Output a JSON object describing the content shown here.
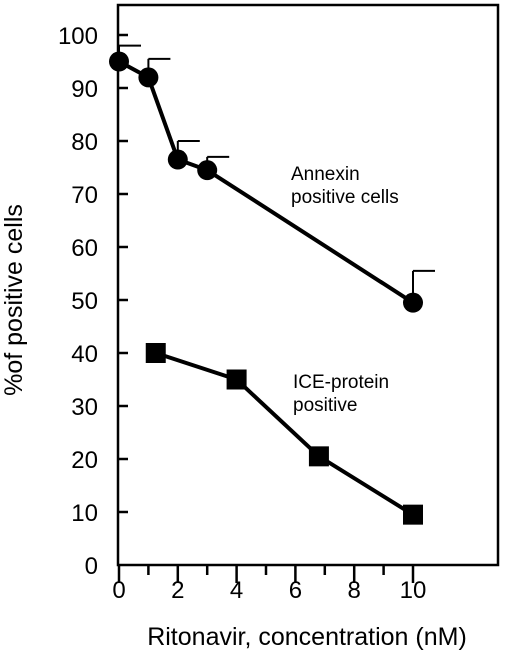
{
  "chart_data": {
    "type": "line",
    "xlabel": "Ritonavir, concentration (nM)",
    "ylabel": "%of positive cells",
    "xlim": [
      0,
      12.8
    ],
    "ylim": [
      0,
      100
    ],
    "x_ticks_major": [
      0,
      2,
      4,
      6,
      8,
      10
    ],
    "x_ticks_minor": [
      1,
      3,
      5,
      7,
      9
    ],
    "x_tick_labels": [
      "0",
      "2",
      "4",
      "6",
      "8",
      "10"
    ],
    "y_ticks": [
      0,
      10,
      20,
      30,
      40,
      50,
      60,
      70,
      80,
      90,
      100
    ],
    "y_tick_labels": [
      "0",
      "10",
      "20",
      "30",
      "40",
      "50",
      "60",
      "70",
      "80",
      "90",
      "100"
    ],
    "grid": false,
    "series": [
      {
        "name": "Annexin positive cells",
        "marker": "circle",
        "x": [
          0,
          1,
          2,
          3,
          10
        ],
        "y": [
          95,
          92,
          76.5,
          74.5,
          49.5
        ],
        "error_upper": [
          98,
          95.5,
          80,
          77,
          55.5
        ]
      },
      {
        "name": "ICE-protein positive",
        "marker": "square",
        "x": [
          1.25,
          4,
          6.8,
          10
        ],
        "y": [
          40,
          35,
          20.5,
          9.5
        ]
      }
    ],
    "annotations": [
      {
        "lines": [
          "Annexin",
          "positive cells"
        ],
        "series": 0
      },
      {
        "lines": [
          "ICE-protein",
          "positive"
        ],
        "series": 1
      }
    ]
  }
}
